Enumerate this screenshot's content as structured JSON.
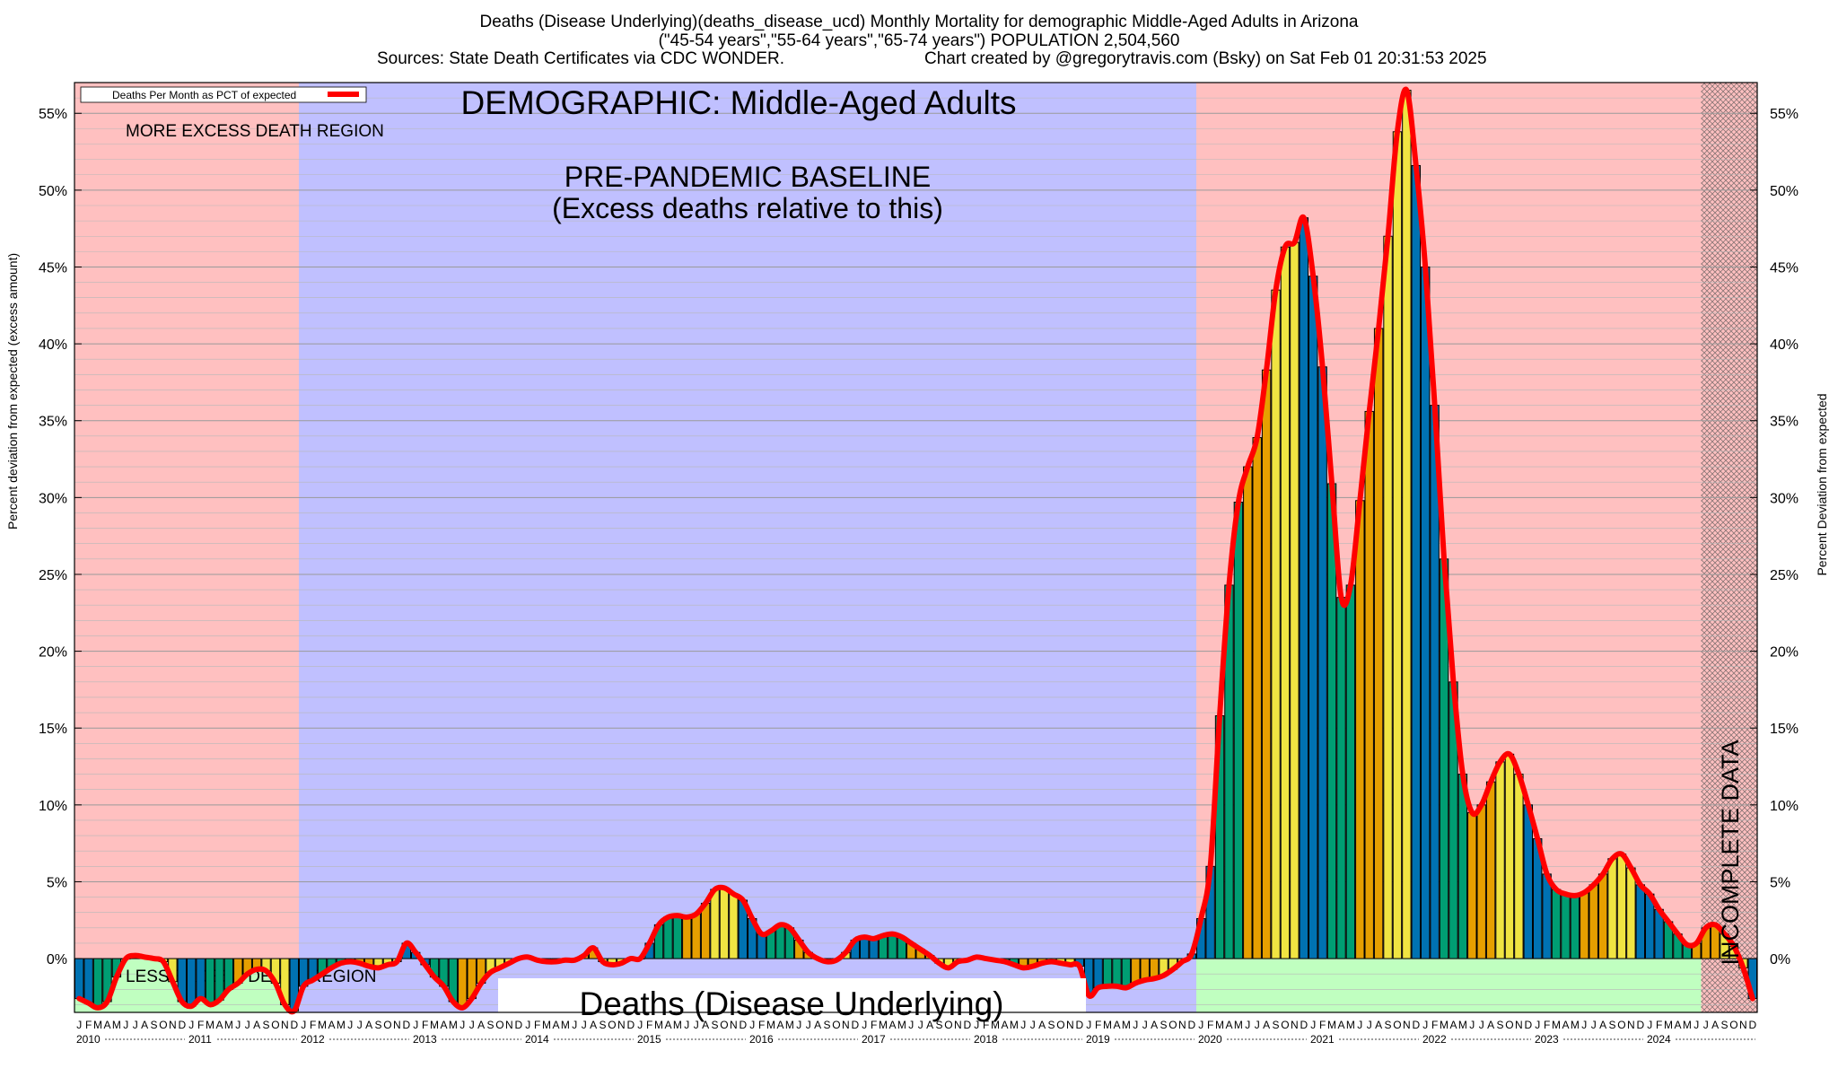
{
  "header": {
    "title_line1": "Deaths (Disease Underlying)(deaths_disease_ucd) Monthly Mortality for demographic Middle-Aged Adults in Arizona",
    "title_line2": "(\"45-54 years\",\"55-64 years\",\"65-74 years\") POPULATION 2,504,560",
    "source": "Sources: State Death Certificates via CDC WONDER.",
    "credit": "Chart created by @gregorytravis.com (Bsky) on Sat Feb 01 20:31:53 2025"
  },
  "chart_data": {
    "type": "bar",
    "title": "DEMOGRAPHIC: Middle-Aged Adults",
    "bottom_label": "Deaths (Disease Underlying)",
    "ylabel_left": "Percent deviation from expected (excess amount)",
    "ylabel_right": "Percent Deviation from expected",
    "legend": {
      "label": "Deaths Per Month as PCT of expected",
      "position": "top-left",
      "line_color": "#ff0000"
    },
    "ylim": [
      -3.5,
      57
    ],
    "yticks": [
      0,
      5,
      10,
      15,
      20,
      25,
      30,
      35,
      40,
      45,
      50,
      55
    ],
    "ytick_labels": [
      "0%",
      "5%",
      "10%",
      "15%",
      "20%",
      "25%",
      "30%",
      "35%",
      "40%",
      "45%",
      "50%",
      "55%"
    ],
    "start_year": 2010,
    "years": [
      "2010",
      "2011",
      "2012",
      "2013",
      "2014",
      "2015",
      "2016",
      "2017",
      "2018",
      "2019",
      "2020",
      "2021",
      "2022",
      "2023",
      "2024"
    ],
    "month_letters": [
      "J",
      "F",
      "M",
      "A",
      "M",
      "J",
      "J",
      "A",
      "S",
      "O",
      "N",
      "D"
    ],
    "season_colors": [
      "#0072b2",
      "#009e73",
      "#e69f00",
      "#f0e442"
    ],
    "values": [
      -2.6,
      -2.9,
      -3.2,
      -2.8,
      -1.2,
      0.0,
      0.2,
      0.1,
      0.0,
      -0.2,
      -1.5,
      -2.8,
      -3.1,
      -2.6,
      -3.0,
      -2.7,
      -2.0,
      -1.6,
      -1.0,
      -0.7,
      -0.8,
      -1.6,
      -3.0,
      -3.4,
      -1.8,
      -1.4,
      -1.0,
      -0.6,
      -0.3,
      -0.2,
      -0.3,
      -0.5,
      -0.6,
      -0.4,
      -0.2,
      1.0,
      0.4,
      -0.4,
      -1.2,
      -1.8,
      -2.8,
      -3.2,
      -2.6,
      -1.6,
      -0.9,
      -0.6,
      -0.3,
      0.0,
      0.1,
      -0.1,
      -0.2,
      -0.2,
      -0.1,
      -0.1,
      0.2,
      0.7,
      -0.2,
      -0.4,
      -0.3,
      0.0,
      0.0,
      1.0,
      2.2,
      2.7,
      2.8,
      2.7,
      2.9,
      3.6,
      4.5,
      4.6,
      4.2,
      3.8,
      2.6,
      1.6,
      1.8,
      2.2,
      2.0,
      1.2,
      0.4,
      0.0,
      -0.2,
      -0.1,
      0.4,
      1.2,
      1.4,
      1.3,
      1.5,
      1.6,
      1.4,
      1.0,
      0.6,
      0.2,
      -0.3,
      -0.6,
      -0.2,
      -0.1,
      0.1,
      0.0,
      -0.1,
      -0.2,
      -0.4,
      -0.6,
      -0.5,
      -0.3,
      -0.2,
      -0.3,
      -0.4,
      -0.5,
      -2.4,
      -1.9,
      -1.8,
      -1.8,
      -1.9,
      -1.6,
      -1.4,
      -1.3,
      -1.1,
      -0.7,
      -0.2,
      0.3,
      2.6,
      6.0,
      15.8,
      24.3,
      29.7,
      32.0,
      33.9,
      38.3,
      43.5,
      46.3,
      46.6,
      48.2,
      44.4,
      38.5,
      30.9,
      23.5,
      24.3,
      29.8,
      35.6,
      41.0,
      47.0,
      53.8,
      56.5,
      51.6,
      45.0,
      36.0,
      26.0,
      18.0,
      12.0,
      9.5,
      10.0,
      11.5,
      12.8,
      13.3,
      12.0,
      10.0,
      7.8,
      5.5,
      4.5,
      4.2,
      4.1,
      4.3,
      4.8,
      5.5,
      6.5,
      6.8,
      5.9,
      4.8,
      4.2,
      3.2,
      2.4,
      1.6,
      0.9,
      1.0,
      2.0,
      2.2,
      1.6,
      0.8,
      -0.6,
      -2.6
    ],
    "regions": [
      {
        "label": "MORE EXCESS DEATH REGION",
        "from_month": 0,
        "to_month": 24,
        "color": "#ffc0c0",
        "band": "upper"
      },
      {
        "label": "LESS EXCESS DEATH REGION",
        "from_month": 0,
        "to_month": 24,
        "color": "#c0ffc0",
        "band": "lower"
      },
      {
        "label": "PRE-PANDEMIC BASELINE",
        "label2": "(Excess deaths relative to this)",
        "from_month": 24,
        "to_month": 120,
        "color": "#c0c0ff",
        "band": "full"
      },
      {
        "label": "",
        "from_month": 120,
        "to_month": 174,
        "color": "#ffc0c0",
        "band": "upper"
      },
      {
        "label": "",
        "from_month": 120,
        "to_month": 174,
        "color": "#c0ffc0",
        "band": "lower"
      },
      {
        "label": "INCOMPLETE DATA",
        "from_month": 174,
        "to_month": 180,
        "color": "#ffc0c0",
        "band": "full",
        "hatched": true
      }
    ]
  }
}
